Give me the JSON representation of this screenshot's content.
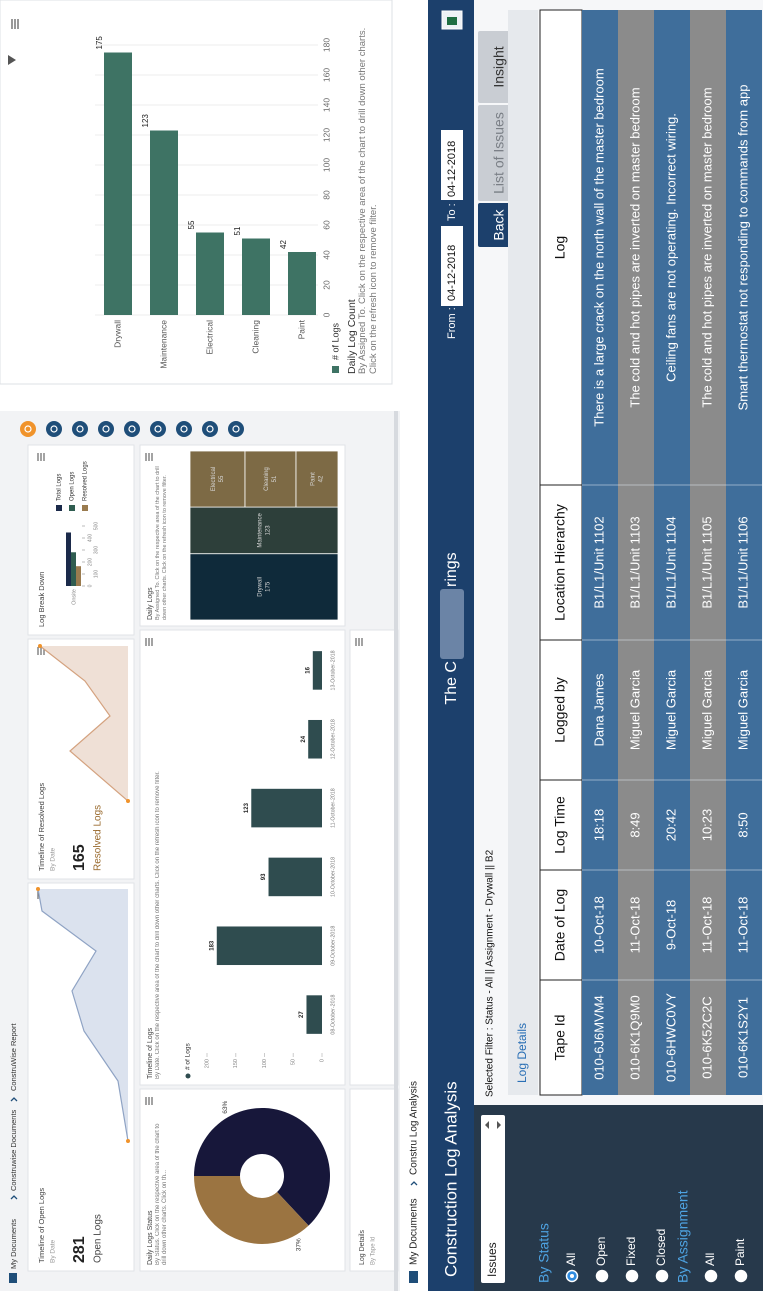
{
  "dashboard": {
    "breadcrumb": [
      "My Documents",
      "Construwise Documents",
      "ConstruWise Report"
    ],
    "open_logs": {
      "title": "Timeline of Open Logs",
      "subtitle": "By Date",
      "count": "281",
      "label": "Open Logs"
    },
    "resolved_logs": {
      "title": "Timeline of Resolved Logs",
      "subtitle": "By Date",
      "count": "165",
      "label": "Resolved Logs"
    },
    "log_breakdown": {
      "title": "Log Break Down",
      "category": "Onsite",
      "series": [
        {
          "name": "Total Logs",
          "color": "#1b2a4a",
          "value": 446
        },
        {
          "name": "Open Logs",
          "color": "#2f5d50",
          "value": 281
        },
        {
          "name": "Resolved Logs",
          "color": "#9a7b4f",
          "value": 165
        }
      ],
      "xlim": [
        0,
        500
      ],
      "xticks": [
        0,
        100,
        200,
        300,
        400,
        500
      ]
    },
    "status": {
      "title": "Daily Logs Status",
      "subtitle": "By Status. Click on the respective area of the chart to drill down other charts. Click on th...",
      "slices": [
        {
          "value": 63,
          "label": "63%",
          "color": "#17173a"
        },
        {
          "value": 37,
          "label": "37%",
          "color": "#9b7441"
        }
      ]
    },
    "timeline": {
      "title": "Timeline of Logs",
      "subtitle": "By Date. Click on the respective area of the chart to drill down other charts. Click on the refresh icon to remove filter.",
      "legend": "# of Logs",
      "color": "#2f4c4f",
      "categories": [
        "08-October-2018",
        "09-October-2018",
        "10-October-2018",
        "11-October-2018",
        "12-October-2018",
        "13-October-2018"
      ],
      "values": [
        27,
        183,
        93,
        123,
        24,
        16
      ],
      "ylim": [
        0,
        200
      ],
      "yticks": [
        0,
        50,
        100,
        150,
        200
      ]
    },
    "daily_logs": {
      "title": "Daily Logs",
      "subtitle": "By Assigned To. Click on the respective area of the chart to drill down other charts. Click on the refresh icon to remove filter.",
      "items": [
        {
          "name": "Drywall",
          "value": 175,
          "color": "#0f2a3a"
        },
        {
          "name": "Maintenance",
          "value": 123,
          "color": "#2d3f3a"
        },
        {
          "name": "Electrical",
          "value": 55,
          "color": "#7d6a45"
        },
        {
          "name": "Cleaning",
          "value": 51,
          "color": "#7d6a45"
        },
        {
          "name": "Paint",
          "value": 42,
          "color": "#7d6a45"
        }
      ]
    },
    "log_details": {
      "title": "Log Details",
      "subtitle": "By Tape Id"
    }
  },
  "app": {
    "breadcrumb": [
      "My Documents",
      "Constru Log Analysis"
    ],
    "title": "Construction Log Analysis",
    "banner": [
      "The C",
      "rings"
    ],
    "from_label": "From :",
    "from_date": "04-12-2018",
    "to_label": "To :",
    "to_date": "04-12-2018",
    "buttons": [
      "Back",
      "List of Issues",
      "Insight"
    ],
    "filter": "Selected Filter : Status - All || Assignment - Drywall || B2",
    "section": "Log Details",
    "dropdown": "Issues",
    "groups": [
      {
        "title": "By Status",
        "options": [
          "All",
          "Open",
          "Fixed",
          "Closed"
        ],
        "selected": 0
      },
      {
        "title": "By Assignment",
        "options": [
          "All",
          "Paint"
        ]
      }
    ],
    "table": {
      "columns": [
        "Tape Id",
        "Date of Log",
        "Log Time",
        "Logged by",
        "Location Hierarchy",
        "Log"
      ],
      "rows": [
        [
          "010-6J6MVM4",
          "10-Oct-18",
          "18:18",
          "Dana James",
          "B1/L1/Unit 1102",
          "There is a large crack on the north wall of the master bedroom"
        ],
        [
          "010-6K1Q9M0",
          "11-Oct-18",
          "8:49",
          "Miguel Garcia",
          "B1/L1/Unit 1103",
          "The cold and hot pipes are inverted on master bedroom"
        ],
        [
          "010-6HWC0VY",
          "9-Oct-18",
          "20:42",
          "Miguel Garcia",
          "B1/L1/Unit 1104",
          "Ceiling fans are not operating. Incorrect wiring."
        ],
        [
          "010-6K52C2C",
          "11-Oct-18",
          "10:23",
          "Miguel Garcia",
          "B1/L1/Unit 1105",
          "The cold and hot pipes are inverted on master bedroom"
        ],
        [
          "010-6K1S2Y1",
          "11-Oct-18",
          "8:50",
          "Miguel Garcia",
          "B1/L1/Unit 1106",
          "Smart thermostat not responding to commands from app"
        ]
      ]
    }
  },
  "chart_data": {
    "type": "bar",
    "title": "Daily Log Count",
    "subtitle": "By Assigned To. Click on the respective area of the chart to drill down other charts. Click on the refresh icon to remove filter.",
    "categories": [
      "Drywall",
      "Maintenance",
      "Electrical",
      "Cleaning",
      "Paint"
    ],
    "series": [
      {
        "name": "# of Logs",
        "color": "#3e7364",
        "values": [
          175,
          123,
          55,
          51,
          42
        ]
      }
    ],
    "ylim": [
      0,
      180
    ],
    "yticks": [
      0,
      20,
      40,
      60,
      80,
      100,
      120,
      140,
      160,
      180
    ],
    "grid": true
  }
}
